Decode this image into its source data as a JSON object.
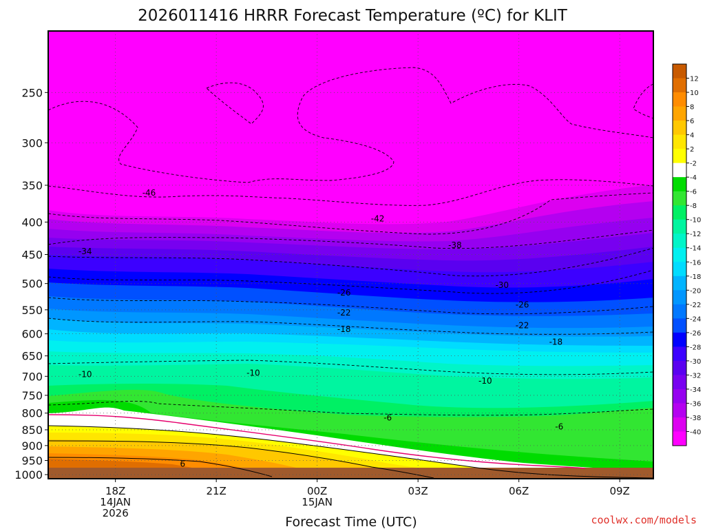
{
  "chart_data": {
    "type": "heatmap",
    "title": "2026011416 HRRR Forecast Temperature (ºC) for KLIT",
    "xlabel": "Forecast Time (UTC)",
    "ylabel": "",
    "credit": "coolwx.com/models",
    "y_scale": "log-pressure",
    "ylim": [
      1015,
      200
    ],
    "y_ticks": [
      250,
      300,
      350,
      400,
      450,
      500,
      550,
      600,
      650,
      700,
      750,
      800,
      850,
      900,
      950,
      1000
    ],
    "x_range_hours": [
      16,
      34
    ],
    "x_ticks": [
      {
        "hour": 18,
        "lines": [
          "18Z",
          "14JAN",
          "2026"
        ]
      },
      {
        "hour": 21,
        "lines": [
          "21Z"
        ]
      },
      {
        "hour": 24,
        "lines": [
          "00Z",
          "15JAN"
        ]
      },
      {
        "hour": 27,
        "lines": [
          "03Z"
        ]
      },
      {
        "hour": 30,
        "lines": [
          "06Z"
        ]
      },
      {
        "hour": 33,
        "lines": [
          "09Z"
        ]
      }
    ],
    "grid": true,
    "colorbar": {
      "levels": [
        12,
        10,
        8,
        6,
        4,
        2,
        -2,
        -4,
        -6,
        -8,
        -10,
        -12,
        -14,
        -16,
        -18,
        -20,
        -22,
        -24,
        -26,
        -28,
        -30,
        -32,
        -34,
        -36,
        -38,
        -40
      ],
      "colors": [
        "#c85a00",
        "#e06e00",
        "#ff8c00",
        "#ffa500",
        "#ffc800",
        "#ffe600",
        "#ffff00",
        "#ffffff",
        "#00dc00",
        "#32e632",
        "#00f064",
        "#00f5a0",
        "#00f5c8",
        "#00f0f0",
        "#00dcff",
        "#00b4ff",
        "#0096ff",
        "#0078ff",
        "#0050ff",
        "#0000ff",
        "#3c00ff",
        "#5a00f0",
        "#7800f0",
        "#9600f0",
        "#b400f0",
        "#dc00f0",
        "#ff00ff"
      ]
    },
    "contour_labels": [
      {
        "text": "-46",
        "hour": 19,
        "pressure": 360
      },
      {
        "text": "-42",
        "hour": 25.8,
        "pressure": 395
      },
      {
        "text": "-38",
        "hour": 28.1,
        "pressure": 435
      },
      {
        "text": "-34",
        "hour": 17.1,
        "pressure": 445
      },
      {
        "text": "-30",
        "hour": 29.5,
        "pressure": 503
      },
      {
        "text": "-26",
        "hour": 24.8,
        "pressure": 517
      },
      {
        "text": "-26",
        "hour": 30.1,
        "pressure": 540
      },
      {
        "text": "-22",
        "hour": 24.8,
        "pressure": 556
      },
      {
        "text": "-22",
        "hour": 30.1,
        "pressure": 582
      },
      {
        "text": "-18",
        "hour": 24.8,
        "pressure": 590
      },
      {
        "text": "-18",
        "hour": 31.1,
        "pressure": 618
      },
      {
        "text": "-10",
        "hour": 17.1,
        "pressure": 695
      },
      {
        "text": "-10",
        "hour": 22.1,
        "pressure": 692
      },
      {
        "text": "-10",
        "hour": 29.0,
        "pressure": 712
      },
      {
        "text": "-6",
        "hour": 26.1,
        "pressure": 814
      },
      {
        "text": "-6",
        "hour": 31.2,
        "pressure": 840
      },
      {
        "text": "6",
        "hour": 20.0,
        "pressure": 962
      }
    ],
    "temperature_profile_samples": [
      {
        "hour": 16,
        "levels": [
          {
            "p": 1000,
            "t": 9
          },
          {
            "p": 950,
            "t": 6
          },
          {
            "p": 900,
            "t": 3
          },
          {
            "p": 850,
            "t": 0
          },
          {
            "p": 800,
            "t": -4
          },
          {
            "p": 750,
            "t": -7
          },
          {
            "p": 700,
            "t": -10
          },
          {
            "p": 600,
            "t": -18
          },
          {
            "p": 500,
            "t": -28
          },
          {
            "p": 400,
            "t": -40
          },
          {
            "p": 300,
            "t": -50
          },
          {
            "p": 250,
            "t": -50
          }
        ]
      },
      {
        "hour": 24,
        "levels": [
          {
            "p": 1000,
            "t": 6
          },
          {
            "p": 950,
            "t": 3
          },
          {
            "p": 900,
            "t": 1
          },
          {
            "p": 850,
            "t": -3
          },
          {
            "p": 800,
            "t": -6
          },
          {
            "p": 750,
            "t": -8
          },
          {
            "p": 700,
            "t": -10
          },
          {
            "p": 600,
            "t": -18
          },
          {
            "p": 500,
            "t": -26
          },
          {
            "p": 400,
            "t": -42
          },
          {
            "p": 300,
            "t": -50
          },
          {
            "p": 250,
            "t": -48
          }
        ]
      },
      {
        "hour": 34,
        "levels": [
          {
            "p": 1000,
            "t": 0
          },
          {
            "p": 950,
            "t": -2
          },
          {
            "p": 900,
            "t": -5
          },
          {
            "p": 850,
            "t": -6
          },
          {
            "p": 800,
            "t": -6
          },
          {
            "p": 750,
            "t": -8
          },
          {
            "p": 700,
            "t": -12
          },
          {
            "p": 600,
            "t": -20
          },
          {
            "p": 500,
            "t": -32
          },
          {
            "p": 400,
            "t": -40
          },
          {
            "p": 300,
            "t": -48
          },
          {
            "p": 250,
            "t": -48
          }
        ]
      }
    ]
  }
}
